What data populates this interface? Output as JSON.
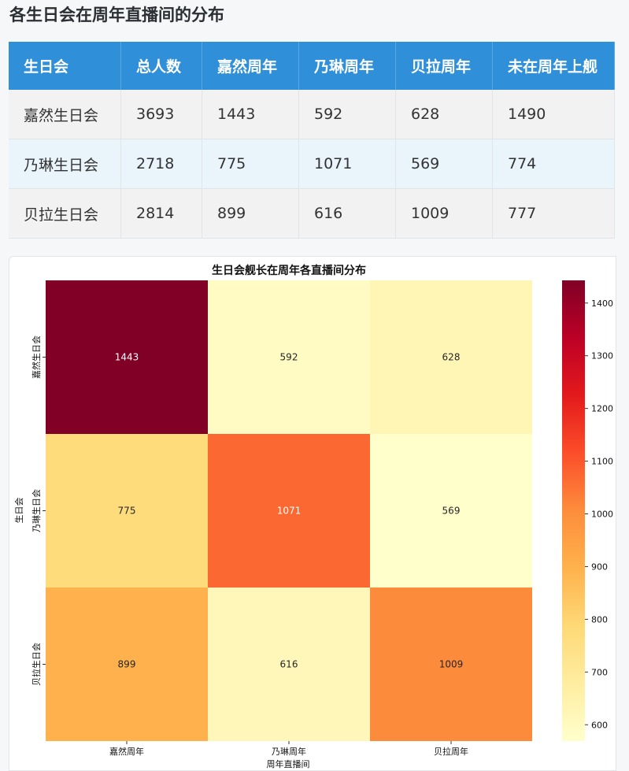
{
  "page_title": "各生日会在周年直播间的分布",
  "table": {
    "headers": [
      "生日会",
      "总人数",
      "嘉然周年",
      "乃琳周年",
      "贝拉周年",
      "未在周年上舰"
    ],
    "rows": [
      [
        "嘉然生日会",
        "3693",
        "1443",
        "592",
        "628",
        "1490"
      ],
      [
        "乃琳生日会",
        "2718",
        "775",
        "1071",
        "569",
        "774"
      ],
      [
        "贝拉生日会",
        "2814",
        "899",
        "616",
        "1009",
        "777"
      ]
    ]
  },
  "chart_data": {
    "type": "heatmap",
    "title": "生日会舰长在周年各直播间分布",
    "xlabel": "周年直播间",
    "ylabel": "生日会",
    "x_categories": [
      "嘉然周年",
      "乃琳周年",
      "贝拉周年"
    ],
    "y_categories": [
      "嘉然生日会",
      "乃琳生日会",
      "贝拉生日会"
    ],
    "values": [
      [
        1443,
        592,
        628
      ],
      [
        775,
        1071,
        569
      ],
      [
        899,
        616,
        1009
      ]
    ],
    "colorbar_ticks": [
      600,
      700,
      800,
      900,
      1000,
      1100,
      1200,
      1300,
      1400
    ],
    "color_range": [
      569,
      1443
    ],
    "colormap": "YlOrRd",
    "grid": false
  }
}
